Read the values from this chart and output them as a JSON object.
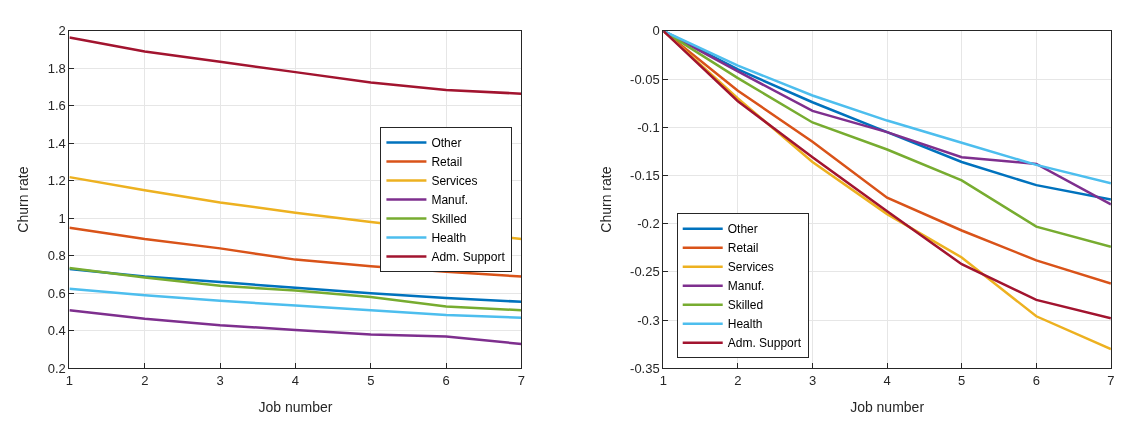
{
  "chart_data": [
    {
      "type": "line",
      "xlabel": "Job number",
      "ylabel": "Churn rate",
      "x": [
        1,
        2,
        3,
        4,
        5,
        6,
        7
      ],
      "xlim": [
        1,
        7
      ],
      "xticks": [
        1,
        2,
        3,
        4,
        5,
        6,
        7
      ],
      "ylim": [
        0.2,
        2
      ],
      "yticks": [
        0.2,
        0.4,
        0.6,
        0.8,
        1,
        1.2,
        1.4,
        1.6,
        1.8,
        2
      ],
      "grid": true,
      "legend": "right",
      "line_style": "solid",
      "series": [
        {
          "name": "Other",
          "color": "#0072bd",
          "values": [
            0.73,
            0.69,
            0.66,
            0.63,
            0.6,
            0.575,
            0.555
          ]
        },
        {
          "name": "Retail",
          "color": "#d95319",
          "values": [
            0.95,
            0.89,
            0.84,
            0.78,
            0.745,
            0.715,
            0.69
          ]
        },
        {
          "name": "Services",
          "color": "#edb120",
          "values": [
            1.22,
            1.15,
            1.085,
            1.03,
            0.98,
            null,
            0.89
          ]
        },
        {
          "name": "Manuf.",
          "color": "#7e2f8e",
          "values": [
            0.51,
            0.465,
            0.43,
            0.405,
            0.38,
            0.37,
            0.33
          ]
        },
        {
          "name": "Skilled",
          "color": "#77ac30",
          "values": [
            0.735,
            0.685,
            0.64,
            0.615,
            0.58,
            0.53,
            0.51
          ]
        },
        {
          "name": "Health",
          "color": "#4dbeee",
          "values": [
            0.625,
            0.59,
            0.56,
            0.535,
            0.51,
            0.485,
            0.47
          ]
        },
        {
          "name": "Adm. Support",
          "color": "#a2142f",
          "values": [
            1.965,
            1.89,
            1.835,
            1.78,
            1.725,
            1.685,
            1.665
          ]
        }
      ]
    },
    {
      "type": "line",
      "xlabel": "Job number",
      "ylabel": "Churn rate",
      "x": [
        1,
        2,
        3,
        4,
        5,
        6,
        7
      ],
      "xlim": [
        1,
        7
      ],
      "xticks": [
        1,
        2,
        3,
        4,
        5,
        6,
        7
      ],
      "ylim": [
        -0.35,
        0
      ],
      "yticks": [
        -0.35,
        -0.3,
        -0.25,
        -0.2,
        -0.15,
        -0.1,
        -0.05,
        0
      ],
      "grid": true,
      "legend": "bottom left",
      "line_style": "solid",
      "series": [
        {
          "name": "Other",
          "color": "#0072bd",
          "values": [
            0,
            -0.04,
            -0.074,
            -0.105,
            -0.136,
            -0.16,
            -0.175
          ]
        },
        {
          "name": "Retail",
          "color": "#d95319",
          "values": [
            0,
            -0.062,
            -0.115,
            -0.173,
            -0.207,
            -0.238,
            -0.262
          ]
        },
        {
          "name": "Services",
          "color": "#edb120",
          "values": [
            0,
            -0.07,
            -0.136,
            -0.19,
            -0.235,
            -0.296,
            -0.33
          ]
        },
        {
          "name": "Manuf.",
          "color": "#7e2f8e",
          "values": [
            0,
            -0.042,
            -0.083,
            -0.105,
            -0.131,
            -0.138,
            -0.18
          ]
        },
        {
          "name": "Skilled",
          "color": "#77ac30",
          "values": [
            0,
            -0.049,
            -0.095,
            -0.123,
            -0.155,
            -0.203,
            -0.224
          ]
        },
        {
          "name": "Health",
          "color": "#4dbeee",
          "values": [
            0,
            -0.036,
            -0.067,
            -0.093,
            -0.116,
            -0.139,
            -0.158
          ]
        },
        {
          "name": "Adm. Support",
          "color": "#a2142f",
          "values": [
            0,
            -0.073,
            -0.131,
            -0.187,
            -0.242,
            -0.279,
            -0.298
          ]
        }
      ]
    }
  ]
}
